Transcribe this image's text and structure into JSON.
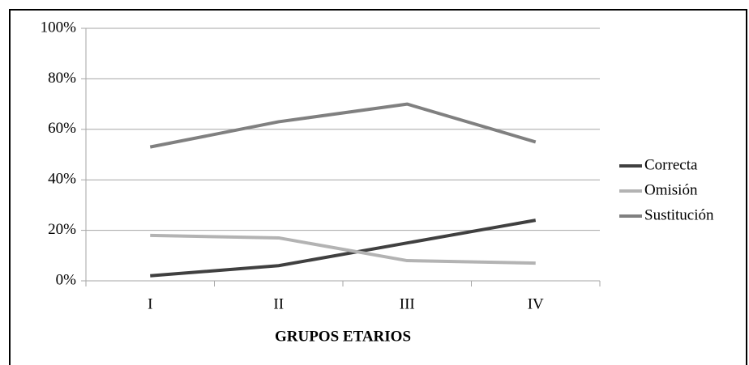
{
  "chart_data": {
    "type": "line",
    "x_label": "GRUPOS ETARIOS",
    "categories": [
      "I",
      "II",
      "III",
      "IV"
    ],
    "series": [
      {
        "name": "Correcta",
        "color": "#404040",
        "values": [
          2,
          6,
          15,
          24
        ]
      },
      {
        "name": "Omisión",
        "color": "#b3b3b3",
        "values": [
          18,
          17,
          8,
          7
        ]
      },
      {
        "name": "Sustitución",
        "color": "#808080",
        "values": [
          53,
          63,
          70,
          55
        ]
      }
    ],
    "ylim": [
      0,
      100
    ],
    "yticks": [
      {
        "value": 0,
        "label": "0%"
      },
      {
        "value": 20,
        "label": "20%"
      },
      {
        "value": 40,
        "label": "40%"
      },
      {
        "value": 60,
        "label": "60%"
      },
      {
        "value": 80,
        "label": "80%"
      },
      {
        "value": 100,
        "label": "100%"
      }
    ],
    "grid": true,
    "legend": "right"
  }
}
